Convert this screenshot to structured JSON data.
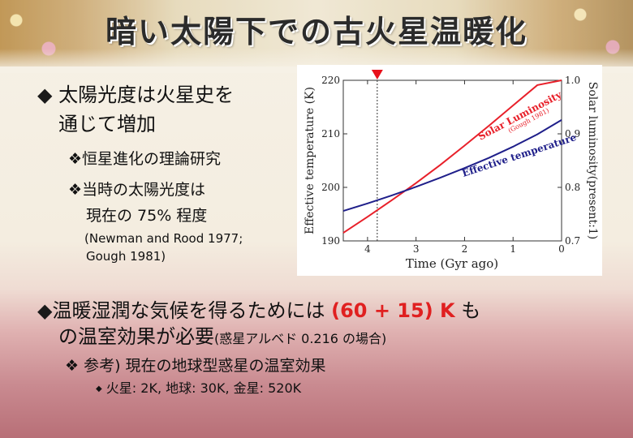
{
  "title": "暗い太陽下での古火星温暖化",
  "bullet1": {
    "marker": "◆",
    "line1": "太陽光度は火星史を",
    "line2": "通じて増加"
  },
  "sub1": {
    "marker": "❖",
    "text": "恒星進化の理論研究"
  },
  "sub2": {
    "marker": "❖",
    "line1": "当時の太陽光度は",
    "line2": "現在の 75% 程度"
  },
  "refs": {
    "line1": "(Newman and Rood 1977;",
    "line2": "Gough 1981)"
  },
  "bullet2": {
    "marker": "◆",
    "prefix": "温暖湿潤な気候を得るためには ",
    "highlight": "(60 + 15) K",
    "suffix": " も",
    "line2": "の温室効果が必要",
    "note": "(惑星アルベド 0.216 の場合)"
  },
  "sub3": {
    "marker": "❖",
    "text": "参考) 現在の地球型惑星の温室効果"
  },
  "sub4": {
    "marker": "◆",
    "text": "火星: 2K, 地球: 30K, 金星: 520K"
  },
  "chart_data": {
    "type": "line",
    "xlabel": "Time (Gyr ago)",
    "ylabel_left": "Effective temperature (K)",
    "ylabel_right": "Solar luminosity(present:1)",
    "x_reversed": true,
    "xlim": [
      4.5,
      0
    ],
    "x_ticks": [
      4,
      3,
      2,
      1,
      0
    ],
    "ylim_left": [
      190,
      220
    ],
    "y_ticks_left": [
      190,
      200,
      210,
      220
    ],
    "ylim_right": [
      0.7,
      1.0
    ],
    "y_ticks_right": [
      "0.7",
      "0.8",
      "0.9",
      "1.0"
    ],
    "marker_x": 3.8,
    "series": [
      {
        "name": "Solar Luminosity",
        "sublabel": "(Gough 1981)",
        "axis": "right",
        "color": "#e8202a",
        "x": [
          4.5,
          4,
          3.5,
          3,
          2.5,
          2,
          1.5,
          1,
          0.5,
          0
        ],
        "y": [
          0.715,
          0.745,
          0.776,
          0.808,
          0.842,
          0.878,
          0.915,
          0.953,
          0.991,
          1.0
        ]
      },
      {
        "name": "Effective temperature",
        "axis": "left",
        "color": "#1f1f8a",
        "x": [
          4.5,
          4,
          3.5,
          3,
          2.5,
          2,
          1.5,
          1,
          0.5,
          0
        ],
        "y": [
          195.6,
          197.0,
          198.5,
          200.1,
          201.8,
          203.6,
          205.5,
          207.6,
          209.9,
          212.6
        ]
      }
    ]
  }
}
